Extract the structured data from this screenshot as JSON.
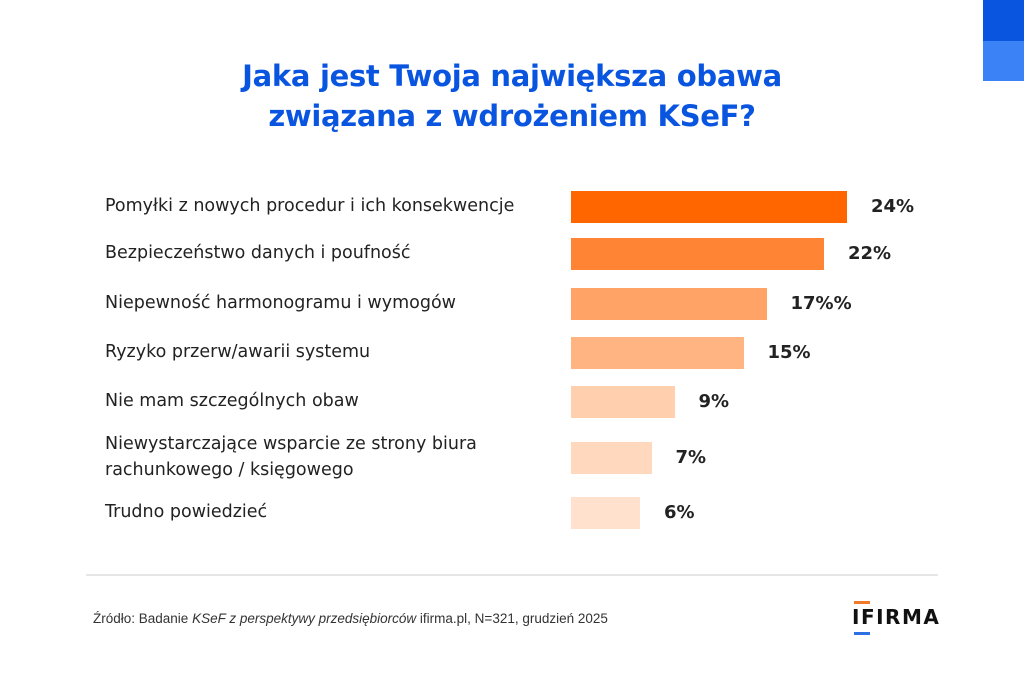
{
  "chart_data": {
    "type": "bar",
    "orientation": "horizontal",
    "title": "Jaka jest Twoja największa obawa związana z wdrożeniem KSeF?",
    "title_lines": [
      "Jaka jest Twoja największa obawa",
      "związana z wdrożeniem KSeF?"
    ],
    "categories": [
      [
        "Pomyłki z nowych procedur i ich konsekwencje"
      ],
      [
        "Bezpieczeństwo danych i poufność"
      ],
      [
        "Niepewność harmonogramu i wymogów"
      ],
      [
        "Ryzyko przerw/awarii systemu"
      ],
      [
        "Nie mam szczególnych obaw"
      ],
      [
        "Niewystarczające wsparcie ze strony biura",
        "rachunkowego / księgowego"
      ],
      [
        "Trudno powiedzieć"
      ]
    ],
    "values": [
      24,
      22,
      17,
      15,
      9,
      7,
      6
    ],
    "value_labels": [
      "24%",
      "22%",
      "17%%",
      "15%",
      "9%",
      "7%",
      "6%"
    ],
    "unit": "%",
    "bar_colors": [
      "#ff6600",
      "#ff8534",
      "#ffa466",
      "#ffb482",
      "#ffcfae",
      "#ffd8be",
      "#ffe1cd"
    ],
    "xlabel": "",
    "ylabel": "",
    "grid": false,
    "legend": "none"
  },
  "source": {
    "prefix": "Źródło: Badanie ",
    "italic": "KSeF z perspektywy przedsiębiorców",
    "suffix": " ifirma.pl, N=321, grudzień 2025"
  },
  "logo": {
    "text": "IFIRMA"
  },
  "colors": {
    "accent": "#0a55e0",
    "accent_light": "#3b82f6"
  }
}
